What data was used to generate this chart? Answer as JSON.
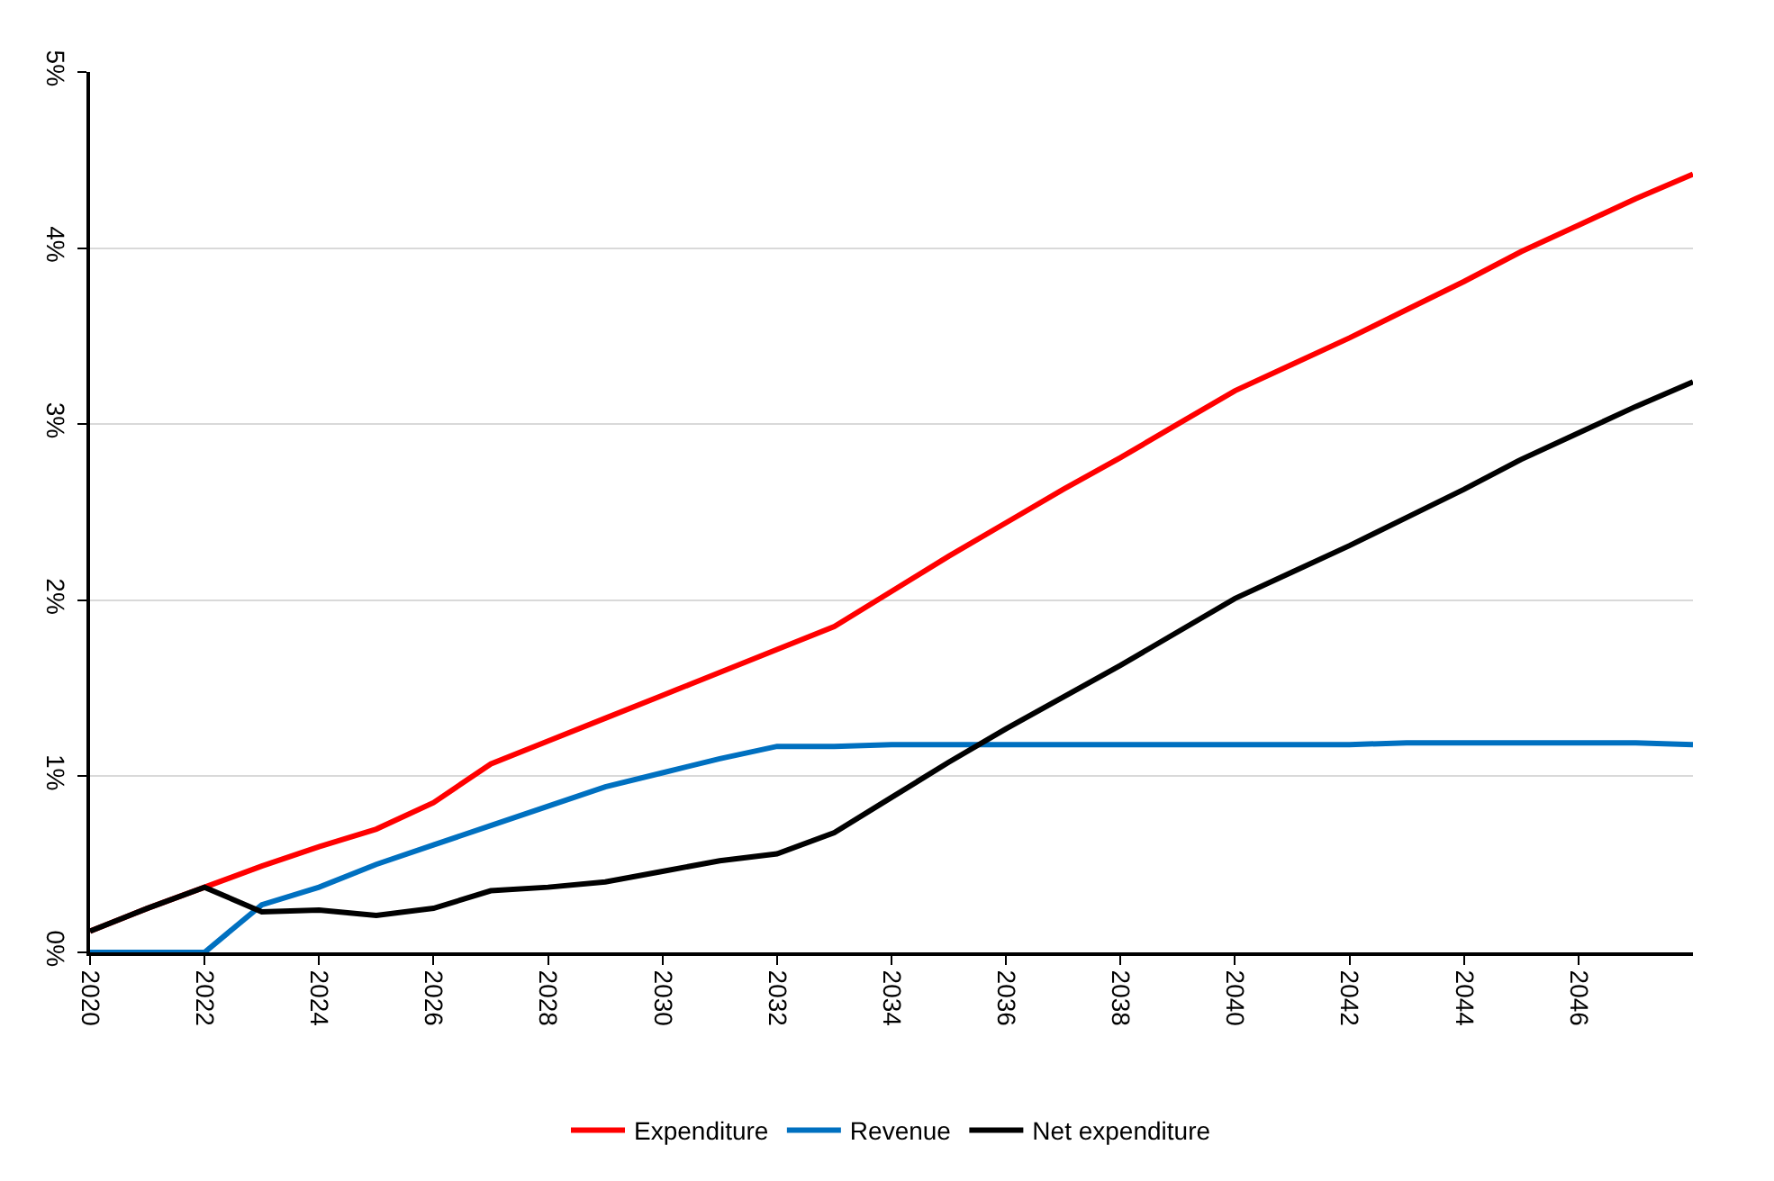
{
  "chart_data": {
    "type": "line",
    "x": [
      2020,
      2021,
      2022,
      2023,
      2024,
      2025,
      2026,
      2027,
      2028,
      2029,
      2030,
      2031,
      2032,
      2033,
      2034,
      2035,
      2036,
      2037,
      2038,
      2039,
      2040,
      2041,
      2042,
      2043,
      2044,
      2045,
      2046,
      2047,
      2048
    ],
    "series": [
      {
        "name": "Expenditure",
        "color": "#ff0000",
        "values": [
          0.12,
          0.25,
          0.37,
          0.49,
          0.6,
          0.7,
          0.85,
          1.07,
          1.2,
          1.33,
          1.46,
          1.59,
          1.72,
          1.85,
          2.05,
          2.25,
          2.44,
          2.63,
          2.81,
          3.0,
          3.19,
          3.34,
          3.49,
          3.65,
          3.81,
          3.98,
          4.13,
          4.28,
          4.42
        ]
      },
      {
        "name": "Revenue",
        "color": "#0070c0",
        "values": [
          0.0,
          0.0,
          0.0,
          0.27,
          0.37,
          0.5,
          0.61,
          0.72,
          0.83,
          0.94,
          1.02,
          1.1,
          1.17,
          1.17,
          1.18,
          1.18,
          1.18,
          1.18,
          1.18,
          1.18,
          1.18,
          1.18,
          1.18,
          1.19,
          1.19,
          1.19,
          1.19,
          1.19,
          1.18
        ]
      },
      {
        "name": "Net expenditure",
        "color": "#000000",
        "values": [
          0.12,
          0.25,
          0.37,
          0.23,
          0.24,
          0.21,
          0.25,
          0.35,
          0.37,
          0.4,
          0.46,
          0.52,
          0.56,
          0.68,
          0.88,
          1.08,
          1.27,
          1.45,
          1.63,
          1.82,
          2.01,
          2.16,
          2.31,
          2.47,
          2.63,
          2.8,
          2.95,
          3.1,
          3.24
        ]
      }
    ],
    "xlim": [
      2020,
      2048
    ],
    "xticks": [
      2020,
      2022,
      2024,
      2026,
      2028,
      2030,
      2032,
      2034,
      2036,
      2038,
      2040,
      2042,
      2044,
      2046
    ],
    "ylim": [
      0,
      5
    ],
    "yticks": [
      {
        "value": 0,
        "label": "0%"
      },
      {
        "value": 1,
        "label": "1%"
      },
      {
        "value": 2,
        "label": "2%"
      },
      {
        "value": 3,
        "label": "3%"
      },
      {
        "value": 4,
        "label": "4%"
      },
      {
        "value": 5,
        "label": "5%"
      }
    ],
    "grid": "y",
    "legend": "bottom",
    "marker": "none",
    "line_style": "solid"
  }
}
